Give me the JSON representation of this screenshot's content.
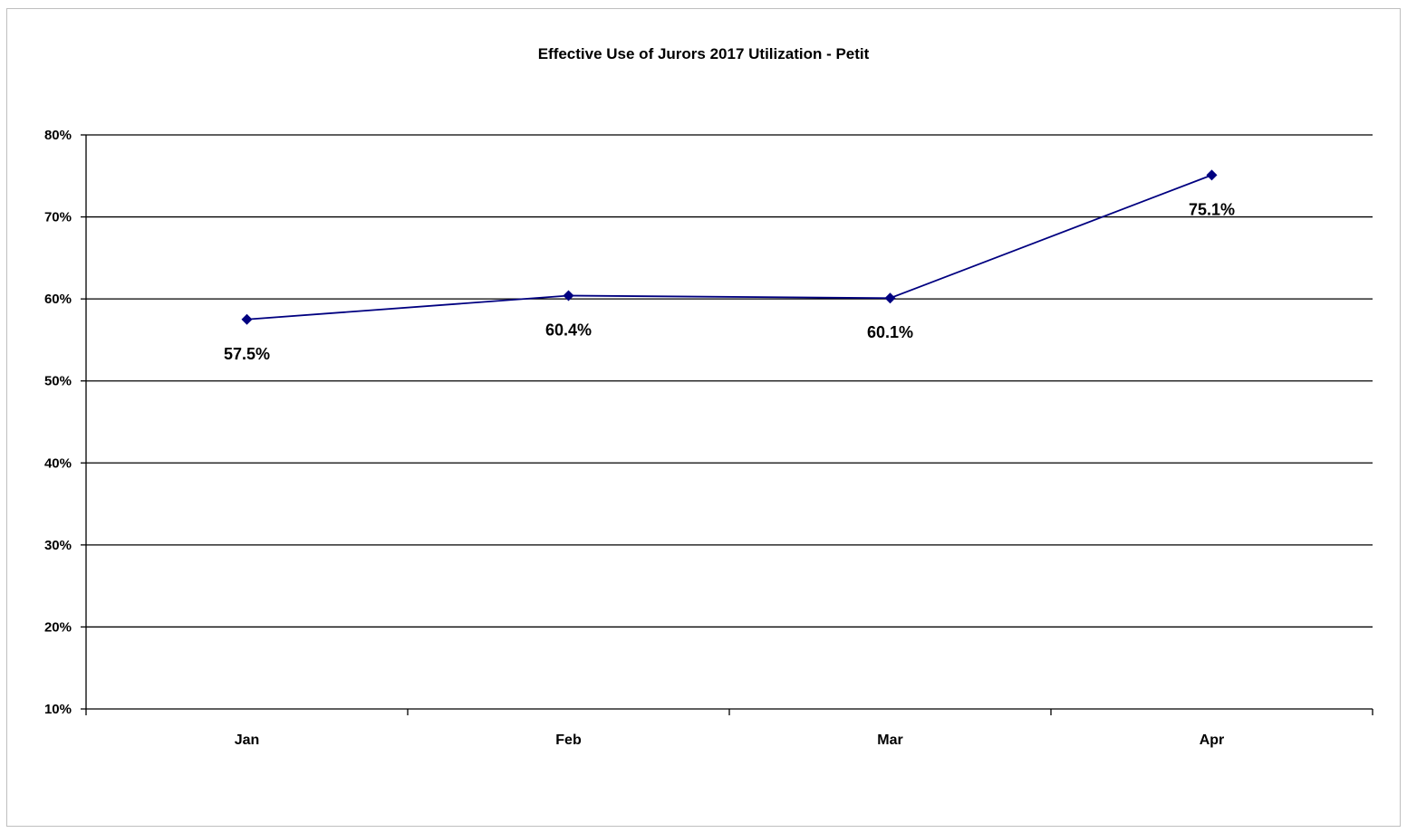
{
  "chart_data": {
    "type": "line",
    "title": "Effective Use of Jurors 2017 Utilization - Petit",
    "xlabel": "",
    "ylabel": "",
    "categories": [
      "Jan",
      "Feb",
      "Mar",
      "Apr"
    ],
    "series": [
      {
        "values": [
          57.5,
          60.4,
          60.1,
          75.1
        ],
        "labels": [
          "57.5%",
          "60.4%",
          "60.1%",
          "75.1%"
        ],
        "color": "#000080",
        "marker": "diamond"
      }
    ],
    "ylim": [
      10,
      80
    ],
    "yticks": [
      10,
      20,
      30,
      40,
      50,
      60,
      70,
      80
    ],
    "ytick_labels": [
      "10%",
      "20%",
      "30%",
      "40%",
      "50%",
      "60%",
      "70%",
      "80%"
    ],
    "grid": true,
    "legend": "none"
  }
}
